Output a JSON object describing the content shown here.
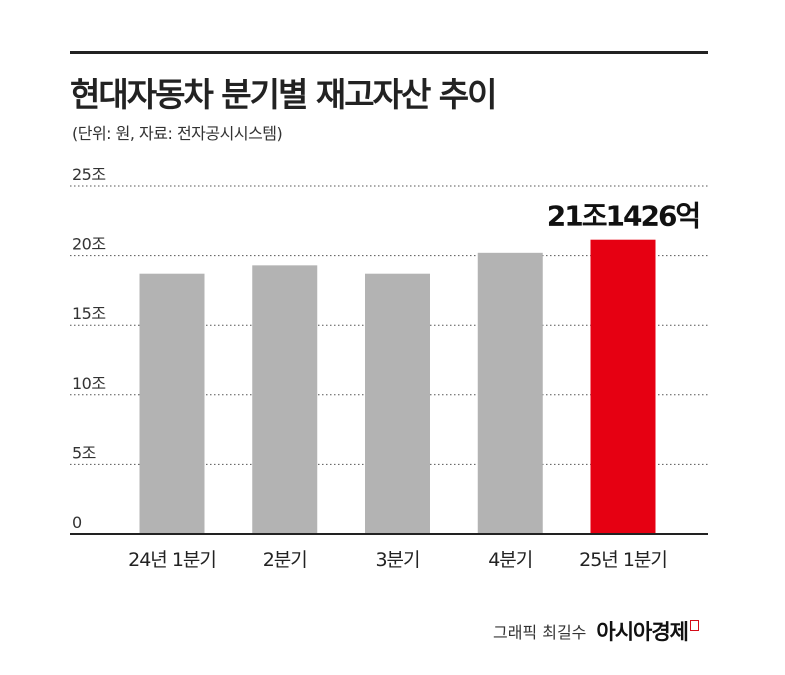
{
  "title": "현대자동차 분기별 재고자산 추이",
  "subtitle": "(단위: 원, 자료: 전자공시시스템)",
  "source": {
    "credit": "그래픽 최길수",
    "brand": "아시아경제"
  },
  "colors": {
    "bar": "#b3b3b3",
    "highlight": "#e60012",
    "grid": "#555555",
    "text": "#222222"
  },
  "chart_data": {
    "type": "bar",
    "categories": [
      "24년 1분기",
      "2분기",
      "3분기",
      "4분기",
      "25년 1분기"
    ],
    "values": [
      18.7,
      19.3,
      18.7,
      20.2,
      21.1426
    ],
    "highlight_index": 4,
    "highlight_label": "21조1426억",
    "ylim": [
      0,
      25
    ],
    "yticks": [
      {
        "value": 0,
        "label": "0"
      },
      {
        "value": 5,
        "label": "5조"
      },
      {
        "value": 10,
        "label": "10조"
      },
      {
        "value": 15,
        "label": "15조"
      },
      {
        "value": 20,
        "label": "20조"
      },
      {
        "value": 25,
        "label": "25조"
      }
    ],
    "grid": true
  }
}
